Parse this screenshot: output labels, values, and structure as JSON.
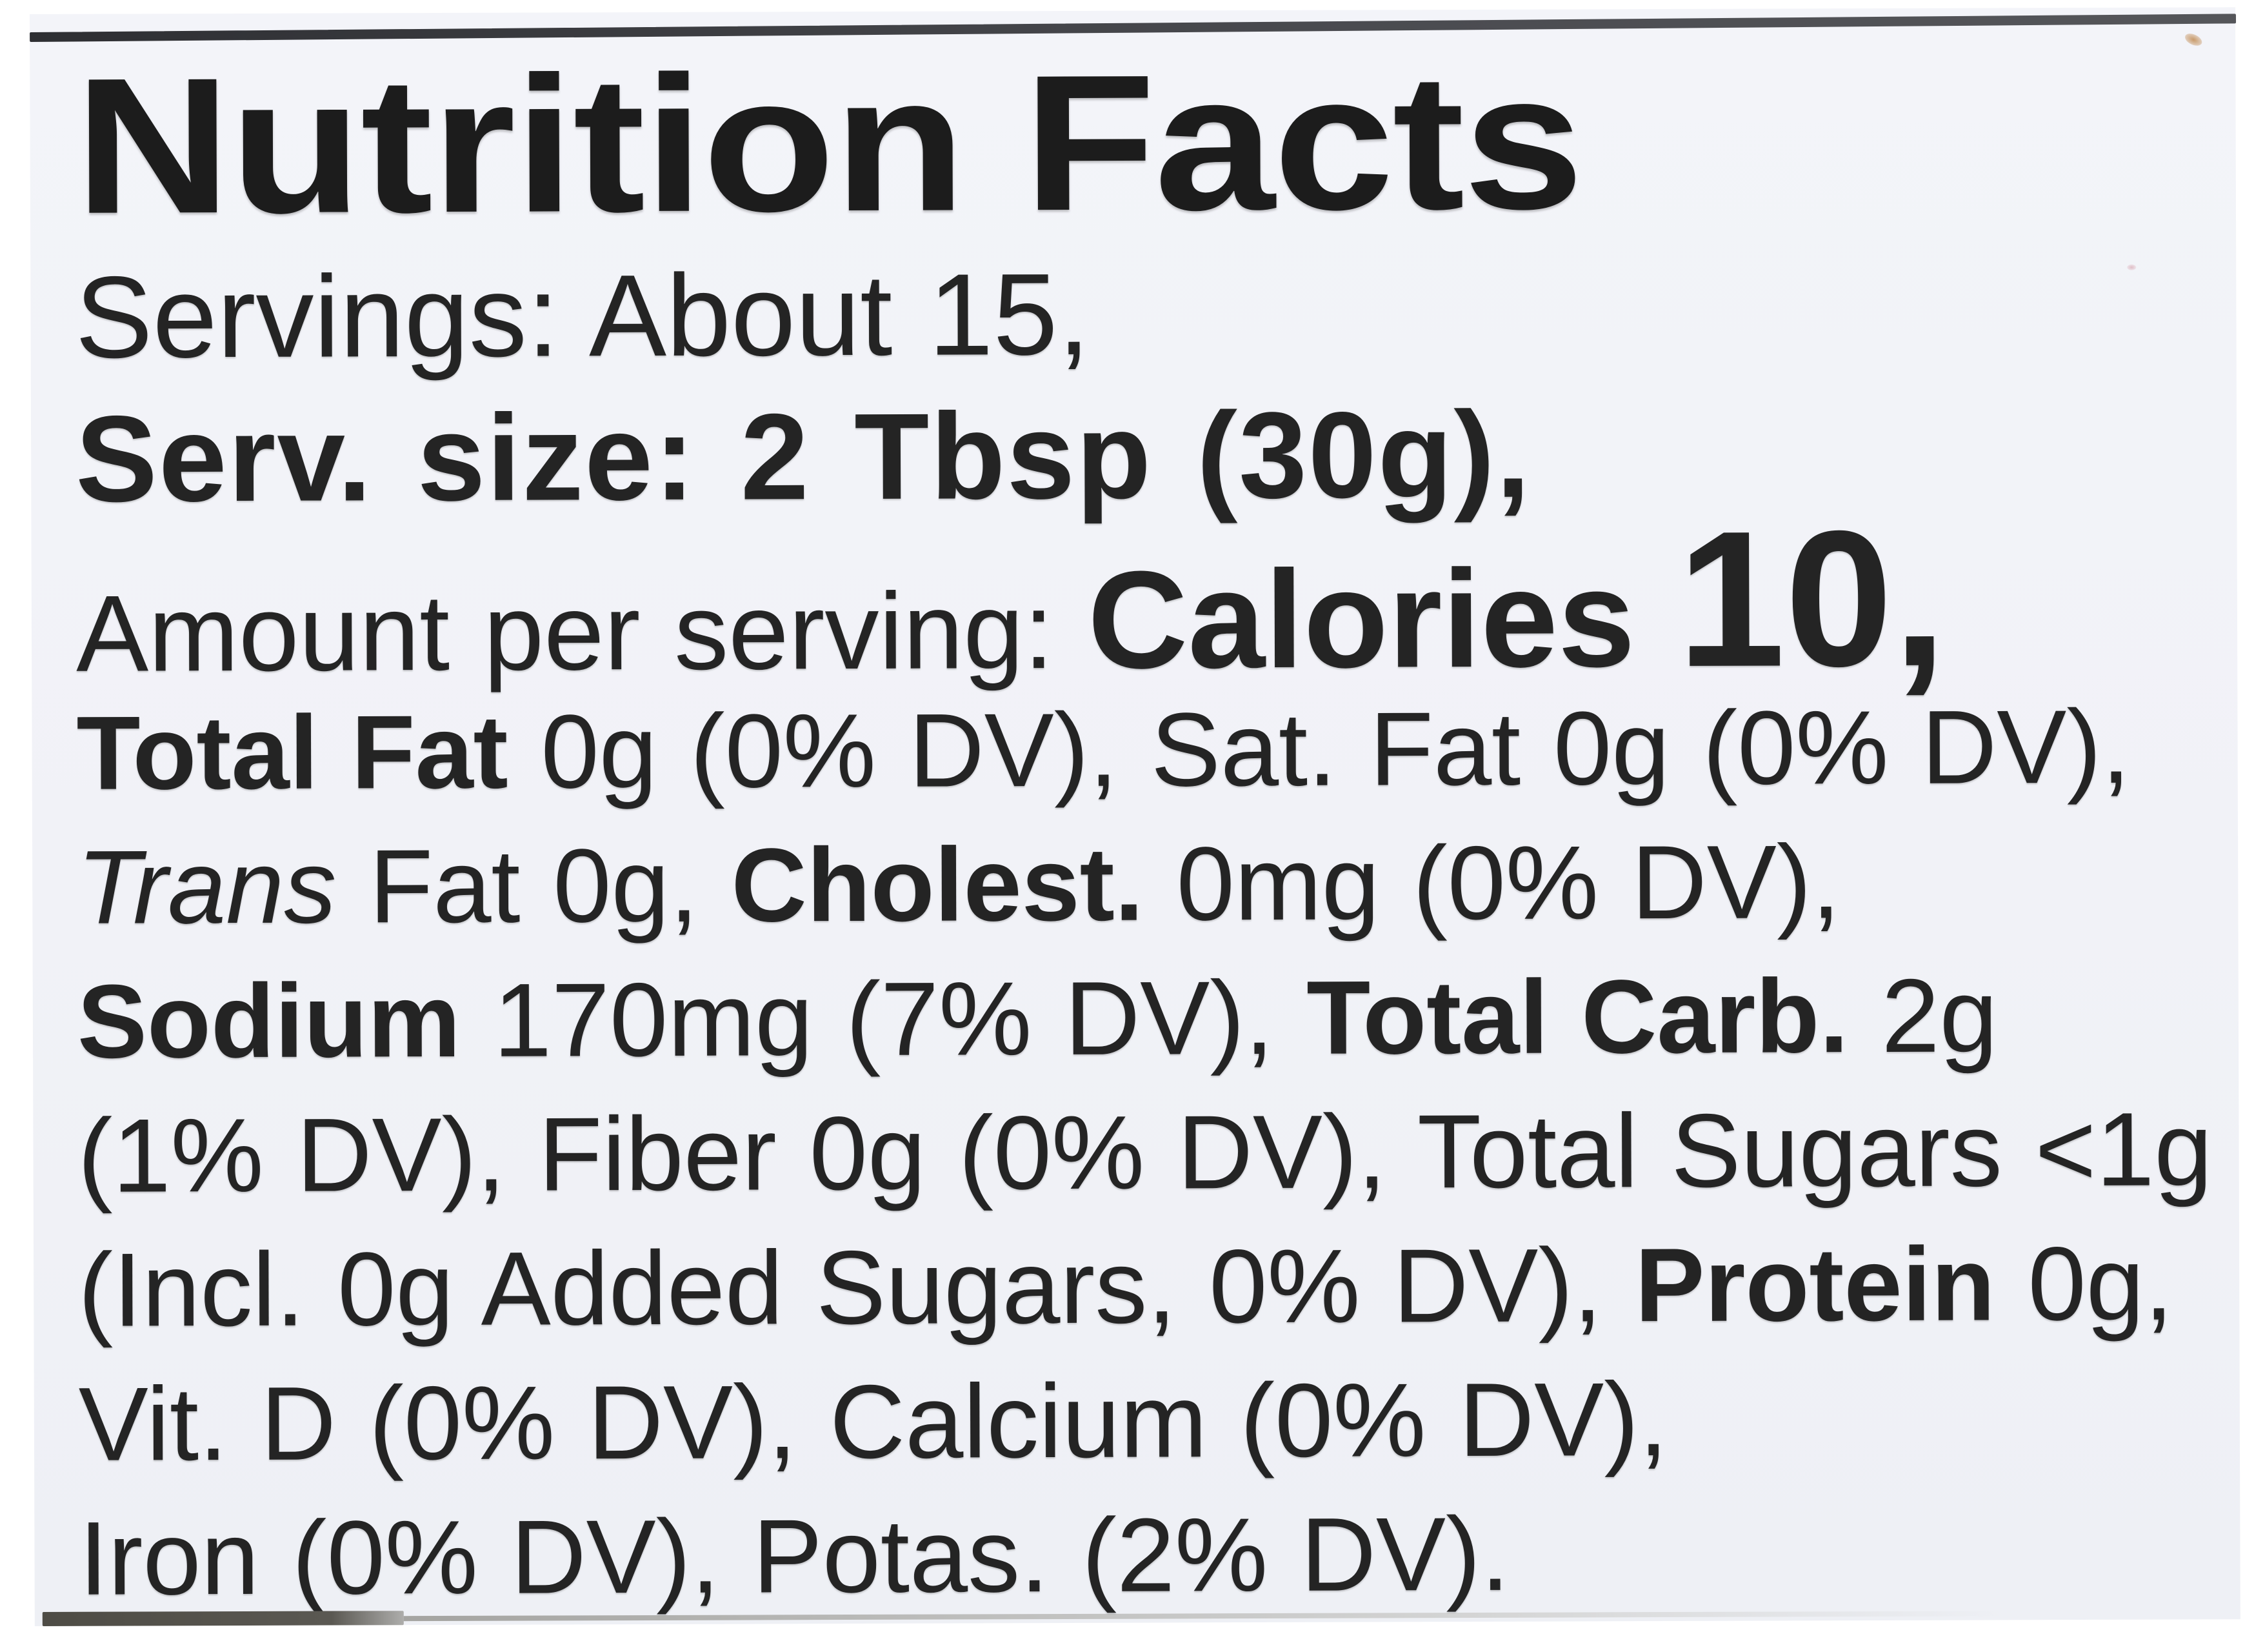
{
  "label": {
    "title": "Nutrition Facts",
    "lines": [
      {
        "id": "servings",
        "segments": [
          {
            "text": "Servings: About 15,",
            "style": "regular"
          }
        ]
      },
      {
        "id": "serving-size",
        "segments": [
          {
            "text": "Serv. size: 2 Tbsp (30g),",
            "style": "bold"
          }
        ]
      },
      {
        "id": "calories",
        "segments": [
          {
            "text": "Amount per serving: ",
            "style": "regular"
          },
          {
            "text": "Calories ",
            "style": "bold"
          },
          {
            "text": "10,",
            "style": "bold-xl"
          }
        ]
      },
      {
        "id": "fat",
        "segments": [
          {
            "text": "Total Fat",
            "style": "bold"
          },
          {
            "text": " 0g (0% DV), ",
            "style": "regular"
          },
          {
            "text": "Sat. Fat 0g (0% DV),",
            "style": "regular"
          }
        ]
      },
      {
        "id": "trans-cholesterol",
        "segments": [
          {
            "text": "Trans",
            "style": "italic"
          },
          {
            "text": " Fat 0g, ",
            "style": "regular"
          },
          {
            "text": "Cholest.",
            "style": "bold"
          },
          {
            "text": " 0mg (0% DV),",
            "style": "regular"
          }
        ]
      },
      {
        "id": "sodium-carb",
        "segments": [
          {
            "text": "Sodium",
            "style": "bold"
          },
          {
            "text": " 170mg (7% DV), ",
            "style": "regular"
          },
          {
            "text": "Total Carb.",
            "style": "bold"
          },
          {
            "text": " 2g",
            "style": "regular"
          }
        ]
      },
      {
        "id": "fiber-sugars",
        "segments": [
          {
            "text": "(1% DV), Fiber 0g (0% DV), Total Sugars <1g",
            "style": "regular"
          }
        ]
      },
      {
        "id": "added-sugars-protein",
        "segments": [
          {
            "text": "(Incl. 0g Added Sugars, 0% DV), ",
            "style": "regular"
          },
          {
            "text": "Protein",
            "style": "bold"
          },
          {
            "text": " 0g,",
            "style": "regular"
          }
        ]
      },
      {
        "id": "vitd-calcium",
        "segments": [
          {
            "text": "Vit. D (0% DV), Calcium (0% DV),",
            "style": "regular"
          }
        ]
      },
      {
        "id": "iron-potassium",
        "segments": [
          {
            "text": "Iron (0% DV), Potas. (2% DV).",
            "style": "regular"
          }
        ]
      }
    ]
  },
  "facts": {
    "servings_per_container": "About 15",
    "serving_size": "2 Tbsp (30g)",
    "calories": "10",
    "total_fat": "0g (0% DV)",
    "saturated_fat": "0g (0% DV)",
    "trans_fat": "0g",
    "cholesterol": "0mg (0% DV)",
    "sodium": "170mg (7% DV)",
    "total_carbohydrate": "2g (1% DV)",
    "dietary_fiber": "0g (0% DV)",
    "total_sugars": "<1g",
    "added_sugars": "0g (0% DV)",
    "protein": "0g",
    "vitamin_d": "0% DV",
    "calcium": "0% DV",
    "iron": "0% DV",
    "potassium": "2% DV"
  },
  "colors": {
    "page_bg": "#ffffff",
    "label_bg": "#f1f2f7",
    "text": "#242424",
    "edge_dark": "#36373b",
    "speck": "#c89a6a"
  }
}
